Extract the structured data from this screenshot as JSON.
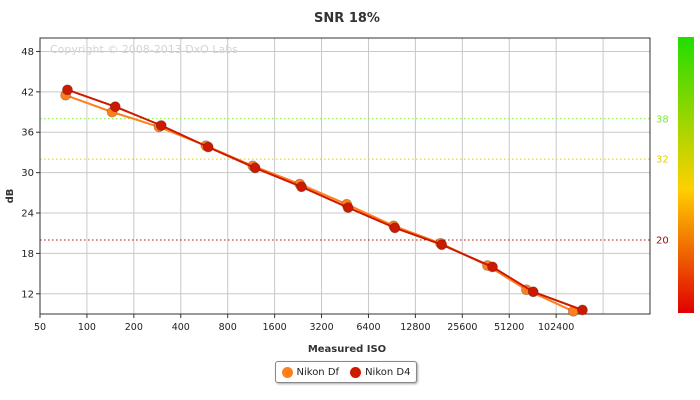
{
  "chart_data": {
    "type": "line",
    "title": "SNR 18%",
    "xlabel": "Measured ISO",
    "ylabel": "dB",
    "copyright": "Copyright © 2008-2013 DxO Labs",
    "x_scale": "log2",
    "x_ticks": [
      50,
      100,
      200,
      400,
      800,
      1600,
      3200,
      6400,
      12800,
      25600,
      51200,
      102400
    ],
    "y_ticks": [
      12,
      18,
      24,
      30,
      36,
      42,
      48
    ],
    "xlim": [
      50,
      409600
    ],
    "ylim": [
      9,
      50
    ],
    "grid": true,
    "legend_position": "bottom-center",
    "series": [
      {
        "name": "Nikon Df",
        "color": "#ff7f1e",
        "x": [
          73,
          145,
          290,
          580,
          1160,
          2320,
          4640,
          9280,
          18560,
          37120,
          66000,
          132000
        ],
        "y": [
          41.5,
          39.0,
          36.8,
          34.0,
          31.0,
          28.3,
          25.3,
          22.1,
          19.5,
          16.2,
          12.6,
          9.4
        ]
      },
      {
        "name": "Nikon D4",
        "color": "#cc1a00",
        "x": [
          75,
          152,
          300,
          600,
          1200,
          2380,
          4740,
          9450,
          18900,
          40000,
          73000,
          151000
        ],
        "y": [
          42.3,
          39.8,
          37.0,
          33.8,
          30.7,
          27.9,
          24.8,
          21.8,
          19.3,
          16.0,
          12.3,
          9.6
        ]
      }
    ],
    "reference_lines": [
      {
        "value": 38,
        "label": "38",
        "color": "#7ee83a"
      },
      {
        "value": 32,
        "label": "32",
        "color": "#e0d000"
      },
      {
        "value": 20,
        "label": "20",
        "color": "#a01010"
      }
    ]
  },
  "legend": {
    "items": [
      {
        "label": "Nikon Df",
        "color": "#ff7f1e"
      },
      {
        "label": "Nikon D4",
        "color": "#cc1a00"
      }
    ]
  }
}
